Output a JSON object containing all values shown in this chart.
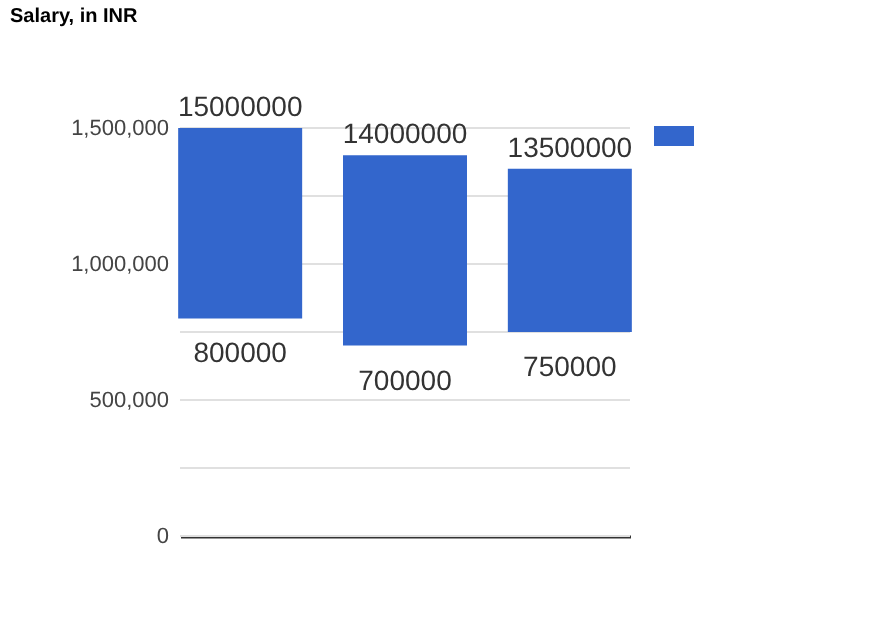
{
  "chart_data": {
    "type": "bar",
    "title": "Salary, in INR",
    "categories": [
      null,
      null,
      null
    ],
    "series": [
      {
        "color": "#3366cc",
        "values": [
          700000,
          700000,
          600000
        ],
        "base": [
          800000,
          700000,
          750000
        ]
      }
    ],
    "value_labels": [
      "15000000",
      "14000000",
      "13500000"
    ],
    "annotations": [
      "800000",
      "700000",
      "750000"
    ],
    "ylim": [
      0,
      1500000
    ],
    "yticks": [
      0,
      {
        "value": 250000,
        "label": null
      },
      {
        "value": 500000,
        "label": "500,000"
      },
      {
        "value": 750000,
        "label": null
      },
      {
        "value": 1000000,
        "label": "1,000,000"
      },
      {
        "value": 1250000,
        "label": null
      },
      {
        "value": 1500000,
        "label": "1,500,000"
      }
    ],
    "grid": "y",
    "tick_labels": "y"
  }
}
